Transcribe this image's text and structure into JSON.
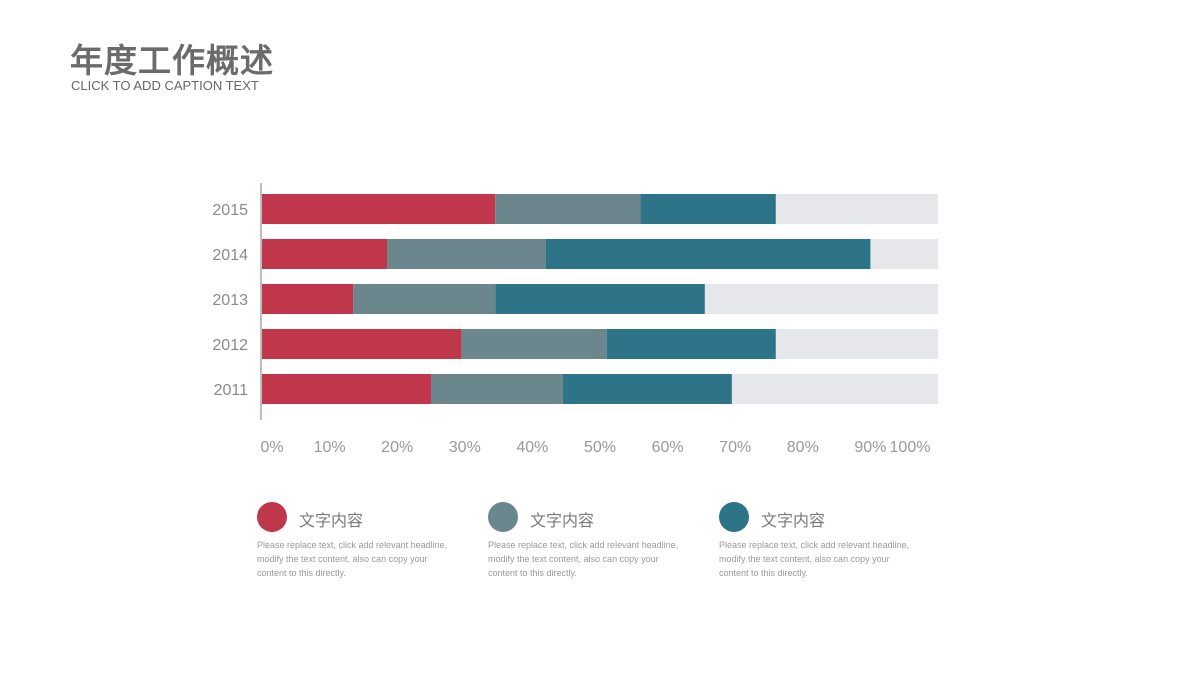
{
  "page": {
    "title": "年度工作概述",
    "subtitle": "CLICK TO ADD CAPTION TEXT"
  },
  "colors": {
    "series1": "#c0374c",
    "series2": "#6b868c",
    "series3": "#2e7489",
    "remainder": "#e6e7ea",
    "axis": "#bfbfbf",
    "tick_text": "#999999",
    "category_text": "#8a8a8a"
  },
  "chart_data": {
    "type": "bar",
    "orientation": "horizontal",
    "stacked": true,
    "categories": [
      "2015",
      "2014",
      "2013",
      "2012",
      "2011"
    ],
    "series": [
      {
        "values": [
          34.5,
          18.5,
          13.5,
          29.5,
          25
        ]
      },
      {
        "values": [
          21.5,
          23.5,
          21,
          21.5,
          19.5
        ]
      },
      {
        "values": [
          20,
          48,
          31,
          25,
          25
        ]
      }
    ],
    "remainder_to": 100,
    "xlim": [
      0,
      100
    ],
    "x_ticks": [
      "0%",
      "10%",
      "20%",
      "30%",
      "40%",
      "50%",
      "60%",
      "70%",
      "80%",
      "90%",
      "100%"
    ],
    "grid": false
  },
  "legend": [
    {
      "label": "文字内容",
      "description": "Please replace text, click add relevant headline, modify the text content, also can copy your content to this directly."
    },
    {
      "label": "文字内容",
      "description": "Please replace text, click add relevant headline, modify the text content, also can copy your content to this directly."
    },
    {
      "label": "文字内容",
      "description": "Please replace text, click add relevant headline, modify the text content, also can copy your content to this directly."
    }
  ]
}
